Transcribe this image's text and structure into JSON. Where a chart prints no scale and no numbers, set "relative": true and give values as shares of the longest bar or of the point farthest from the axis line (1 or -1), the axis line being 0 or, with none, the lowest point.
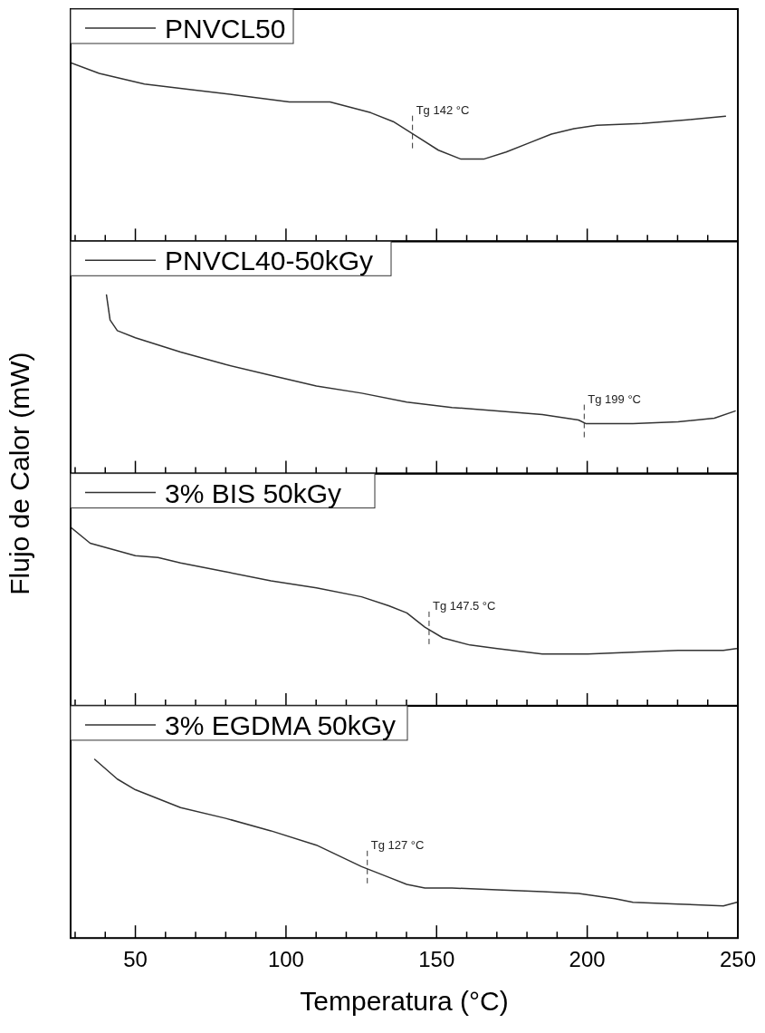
{
  "chart_data": [
    {
      "type": "line",
      "relative": true,
      "ylabel": "Flujo de Calor (mW)",
      "legend": "top left",
      "tick_labels": false,
      "line_style": "solid",
      "xlim": [
        28.5,
        250
      ],
      "xticks": [
        {
          "value": 30,
          "label": null
        },
        {
          "value": 40,
          "label": null
        },
        {
          "value": 50,
          "label": null
        },
        {
          "value": 60,
          "label": null
        },
        {
          "value": 70,
          "label": null
        },
        {
          "value": 80,
          "label": null
        },
        {
          "value": 90,
          "label": null
        },
        {
          "value": 100,
          "label": null
        },
        {
          "value": 110,
          "label": null
        },
        {
          "value": 120,
          "label": null
        },
        {
          "value": 130,
          "label": null
        },
        {
          "value": 140,
          "label": null
        },
        {
          "value": 150,
          "label": null
        },
        {
          "value": 160,
          "label": null
        },
        {
          "value": 170,
          "label": null
        },
        {
          "value": 180,
          "label": null
        },
        {
          "value": 190,
          "label": null
        },
        {
          "value": 200,
          "label": null
        },
        {
          "value": 210,
          "label": null
        },
        {
          "value": 220,
          "label": null
        },
        {
          "value": 230,
          "label": null
        },
        {
          "value": 240,
          "label": null
        },
        {
          "value": 250,
          "label": null
        }
      ],
      "x": [
        28.5,
        38.0,
        53.0,
        68.0,
        83.0,
        101.1,
        114.6,
        128.1,
        135.6,
        143.1,
        150.6,
        158.1,
        165.6,
        173.1,
        180.6,
        188.1,
        195.6,
        203.2,
        218.2,
        233.2,
        245.9
      ],
      "series": [
        {
          "name": "PNVCL50",
          "color": "#333333",
          "values": [
            1.0,
            0.94,
            0.88,
            0.85,
            0.82,
            0.78,
            0.78,
            0.72,
            0.67,
            0.59,
            0.51,
            0.46,
            0.46,
            0.5,
            0.55,
            0.6,
            0.63,
            0.65,
            0.66,
            0.68,
            0.7
          ]
        }
      ],
      "ref_lines": [
        {
          "axis": "x",
          "value": 142,
          "label": "Tg 142 °C",
          "line_style": "dashed",
          "color": "#333333"
        }
      ]
    },
    {
      "type": "line",
      "relative": true,
      "legend": "top left",
      "tick_labels": false,
      "line_style": "solid",
      "xlim": [
        28.5,
        250
      ],
      "xticks": [
        {
          "value": 30,
          "label": null
        },
        {
          "value": 40,
          "label": null
        },
        {
          "value": 50,
          "label": null
        },
        {
          "value": 60,
          "label": null
        },
        {
          "value": 70,
          "label": null
        },
        {
          "value": 80,
          "label": null
        },
        {
          "value": 90,
          "label": null
        },
        {
          "value": 100,
          "label": null
        },
        {
          "value": 110,
          "label": null
        },
        {
          "value": 120,
          "label": null
        },
        {
          "value": 130,
          "label": null
        },
        {
          "value": 140,
          "label": null
        },
        {
          "value": 150,
          "label": null
        },
        {
          "value": 160,
          "label": null
        },
        {
          "value": 170,
          "label": null
        },
        {
          "value": 180,
          "label": null
        },
        {
          "value": 190,
          "label": null
        },
        {
          "value": 200,
          "label": null
        },
        {
          "value": 210,
          "label": null
        },
        {
          "value": 220,
          "label": null
        },
        {
          "value": 230,
          "label": null
        },
        {
          "value": 240,
          "label": null
        },
        {
          "value": 250,
          "label": null
        }
      ],
      "x": [
        40.4,
        41.6,
        44.0,
        50,
        65.0,
        80.0,
        95.0,
        110.1,
        125.1,
        140.1,
        155.1,
        170.1,
        185.1,
        197.1,
        199.5,
        203.2,
        207.7,
        215.2,
        230.2,
        242.2,
        249.1
      ],
      "series": [
        {
          "name": "PNVCL40-50kGy",
          "color": "#333333",
          "values": [
            1.0,
            0.86,
            0.8,
            0.76,
            0.68,
            0.61,
            0.55,
            0.49,
            0.45,
            0.4,
            0.37,
            0.35,
            0.33,
            0.3,
            0.28,
            0.28,
            0.28,
            0.28,
            0.29,
            0.31,
            0.35
          ]
        }
      ],
      "ref_lines": [
        {
          "axis": "x",
          "value": 199,
          "label": "Tg 199 °C",
          "line_style": "dashed",
          "color": "#333333"
        }
      ]
    },
    {
      "type": "line",
      "relative": true,
      "legend": "top left",
      "tick_labels": false,
      "line_style": "solid",
      "xlim": [
        28.5,
        250
      ],
      "xticks": [
        {
          "value": 30,
          "label": null
        },
        {
          "value": 40,
          "label": null
        },
        {
          "value": 50,
          "label": null
        },
        {
          "value": 60,
          "label": null
        },
        {
          "value": 70,
          "label": null
        },
        {
          "value": 80,
          "label": null
        },
        {
          "value": 90,
          "label": null
        },
        {
          "value": 100,
          "label": null
        },
        {
          "value": 110,
          "label": null
        },
        {
          "value": 120,
          "label": null
        },
        {
          "value": 130,
          "label": null
        },
        {
          "value": 140,
          "label": null
        },
        {
          "value": 150,
          "label": null
        },
        {
          "value": 160,
          "label": null
        },
        {
          "value": 170,
          "label": null
        },
        {
          "value": 180,
          "label": null
        },
        {
          "value": 190,
          "label": null
        },
        {
          "value": 200,
          "label": null
        },
        {
          "value": 210,
          "label": null
        },
        {
          "value": 220,
          "label": null
        },
        {
          "value": 230,
          "label": null
        },
        {
          "value": 240,
          "label": null
        },
        {
          "value": 250,
          "label": null
        }
      ],
      "x": [
        28.5,
        35.0,
        50,
        57.5,
        65.0,
        80.0,
        95.0,
        110.1,
        125.1,
        134.1,
        140.1,
        146.1,
        152.1,
        161.1,
        170.1,
        185.1,
        200.2,
        215.2,
        230.2,
        245.2,
        249.5
      ],
      "series": [
        {
          "name": "3% BIS 50kGy",
          "color": "#333333",
          "values": [
            1.0,
            0.91,
            0.84,
            0.83,
            0.8,
            0.75,
            0.7,
            0.66,
            0.61,
            0.56,
            0.52,
            0.44,
            0.38,
            0.34,
            0.32,
            0.29,
            0.29,
            0.3,
            0.31,
            0.31,
            0.32
          ]
        }
      ],
      "ref_lines": [
        {
          "axis": "x",
          "value": 147.5,
          "label": "Tg 147.5 °C",
          "line_style": "dashed",
          "color": "#333333"
        }
      ]
    },
    {
      "type": "line",
      "relative": true,
      "xlabel": "Temperatura (°C)",
      "legend": "top left",
      "tick_labels": "x",
      "line_style": "solid",
      "xlim": [
        28.5,
        250
      ],
      "xticks": [
        {
          "value": 30,
          "label": null
        },
        {
          "value": 40,
          "label": null
        },
        50,
        {
          "value": 60,
          "label": null
        },
        {
          "value": 70,
          "label": null
        },
        {
          "value": 80,
          "label": null
        },
        {
          "value": 90,
          "label": null
        },
        100,
        {
          "value": 110,
          "label": null
        },
        {
          "value": 120,
          "label": null
        },
        {
          "value": 130,
          "label": null
        },
        {
          "value": 140,
          "label": null
        },
        150,
        {
          "value": 160,
          "label": null
        },
        {
          "value": 170,
          "label": null
        },
        {
          "value": 180,
          "label": null
        },
        {
          "value": 190,
          "label": null
        },
        200,
        {
          "value": 210,
          "label": null
        },
        {
          "value": 220,
          "label": null
        },
        {
          "value": 230,
          "label": null
        },
        {
          "value": 240,
          "label": null
        },
        250
      ],
      "x": [
        36.5,
        44.0,
        50,
        65.0,
        80.0,
        95.0,
        110.1,
        125.1,
        134.1,
        140.1,
        146.1,
        155.1,
        170.1,
        185.1,
        197.1,
        209.2,
        215.2,
        230.2,
        245.2,
        249.7
      ],
      "series": [
        {
          "name": "3% EGDMA 50kGy",
          "color": "#333333",
          "values": [
            1.0,
            0.89,
            0.83,
            0.73,
            0.67,
            0.6,
            0.52,
            0.4,
            0.34,
            0.3,
            0.28,
            0.28,
            0.27,
            0.26,
            0.25,
            0.22,
            0.2,
            0.19,
            0.18,
            0.2
          ]
        }
      ],
      "ref_lines": [
        {
          "axis": "x",
          "value": 127,
          "label": "Tg 127 °C",
          "line_style": "dashed",
          "color": "#333333"
        }
      ]
    }
  ]
}
